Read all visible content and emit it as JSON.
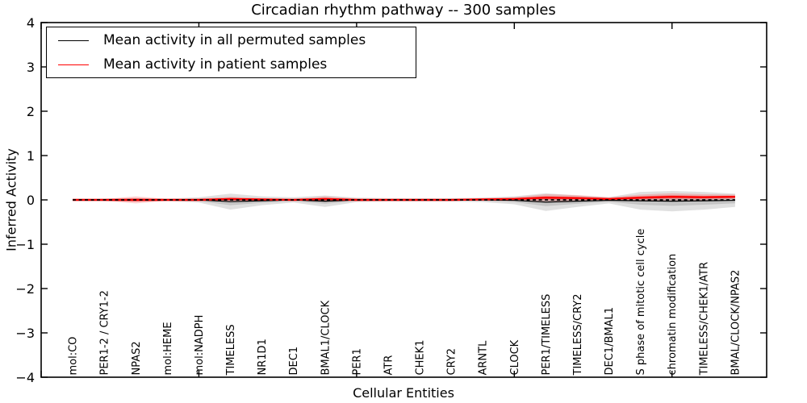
{
  "chart_data": {
    "type": "line",
    "title": "Circadian rhythm pathway -- 300 samples",
    "xlabel": "Cellular Entities",
    "ylabel": "Inferred Activity",
    "ylim": [
      -4,
      4
    ],
    "grid": false,
    "legend_position": "upper left",
    "ytick_values": [
      4,
      3,
      2,
      1,
      0,
      -1,
      -2,
      -3,
      -4
    ],
    "ytick_labels": [
      "4",
      "3",
      "2",
      "1",
      "0",
      "−1",
      "−2",
      "−3",
      "−4"
    ],
    "xtick_major_positions": [
      0,
      5,
      10,
      15,
      20
    ],
    "categories": [
      "mol:CO",
      "PER1-2 / CRY1-2",
      "NPAS2",
      "mol:HEME",
      "mol:NADPH",
      "TIMELESS",
      "NR1D1",
      "DEC1",
      "BMAL1/CLOCK",
      "PER1",
      "ATR",
      "CHEK1",
      "CRY2",
      "ARNTL",
      "CLOCK",
      "PER1/TIMELESS",
      "TIMELESS/CRY2",
      "DEC1/BMAL1",
      "S phase of mitotic cell cycle",
      "chromatin modification",
      "TIMELESS/CHEK1/ATR",
      "BMAL/CLOCK/NPAS2"
    ],
    "series": [
      {
        "name": "Mean activity in all permuted samples",
        "color": "#000000",
        "style": "solid",
        "values": [
          0,
          0,
          0,
          0,
          0,
          -0.04,
          -0.02,
          0,
          -0.03,
          0,
          0,
          0,
          0,
          0,
          -0.01,
          -0.05,
          -0.03,
          -0.01,
          -0.02,
          -0.03,
          -0.02,
          -0.01
        ],
        "band_halfwidth": [
          0.03,
          0.03,
          0.04,
          0.03,
          0.06,
          0.18,
          0.1,
          0.06,
          0.13,
          0.05,
          0.04,
          0.04,
          0.04,
          0.05,
          0.09,
          0.2,
          0.13,
          0.07,
          0.2,
          0.23,
          0.2,
          0.15
        ]
      },
      {
        "name": "Mean activity in patient samples",
        "color": "#ff0000",
        "style": "solid",
        "values": [
          0,
          0,
          0,
          0,
          0,
          0.02,
          0.01,
          0,
          0.02,
          0,
          0,
          0,
          0,
          0.01,
          0.02,
          0.05,
          0.04,
          0.02,
          0.05,
          0.07,
          0.06,
          0.07
        ],
        "band_halfwidth": [
          0.01,
          0.02,
          0.08,
          0.02,
          0.03,
          0.05,
          0.03,
          0.02,
          0.06,
          0.03,
          0.02,
          0.02,
          0.02,
          0.03,
          0.04,
          0.08,
          0.07,
          0.04,
          0.07,
          0.08,
          0.07,
          0.05
        ]
      }
    ],
    "zero_reference_line": {
      "value": 0,
      "color": "#000000",
      "style": "dashed"
    },
    "legend": [
      {
        "label": "Mean activity in all permuted samples",
        "color": "#000000"
      },
      {
        "label": "Mean activity in patient samples",
        "color": "#ff0000"
      }
    ]
  }
}
